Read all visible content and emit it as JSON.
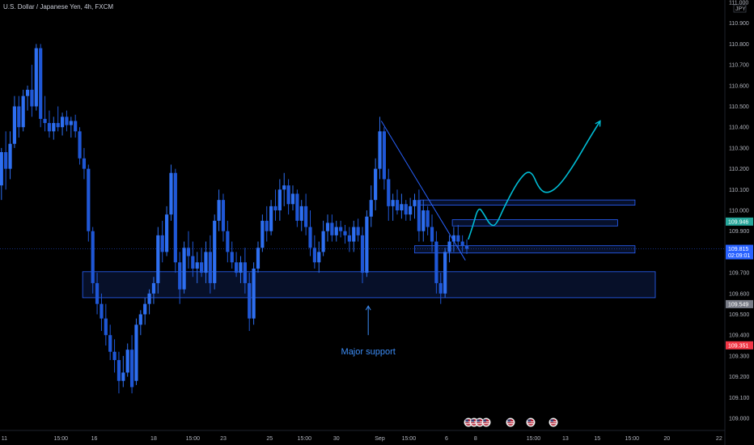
{
  "chart_data": {
    "type": "candlestick",
    "title": "U.S. Dollar / Japanese Yen, 4h, FXCM",
    "currency_tag": "JPY",
    "y_ticks": [
      "111.000",
      "110.900",
      "110.800",
      "110.700",
      "110.600",
      "110.500",
      "110.400",
      "110.300",
      "110.200",
      "110.100",
      "110.000",
      "109.900",
      "109.800",
      "109.700",
      "109.600",
      "109.500",
      "109.400",
      "109.300",
      "109.200",
      "109.100",
      "109.000"
    ],
    "y_tick_values": [
      111.0,
      110.9,
      110.8,
      110.7,
      110.6,
      110.5,
      110.4,
      110.3,
      110.2,
      110.1,
      110.0,
      109.9,
      109.8,
      109.7,
      109.6,
      109.5,
      109.4,
      109.3,
      109.2,
      109.1,
      109.0
    ],
    "ylim": [
      108.98,
      111.02
    ],
    "x_ticks": [
      "11",
      "15:00",
      "16",
      "18",
      "15:00",
      "23",
      "25",
      "15:00",
      "30",
      "Sep",
      "15:00",
      "6",
      "8",
      "15:00",
      "13",
      "15",
      "15:00",
      "20",
      "22"
    ],
    "x_tick_positions": [
      1.5,
      21,
      32.5,
      53,
      66.5,
      77,
      93,
      105,
      116,
      131,
      141,
      154,
      164,
      184,
      195,
      206,
      218,
      230,
      248
    ],
    "xlim": [
      0,
      250
    ],
    "price_badges": [
      {
        "label": "109.946",
        "value": 109.946,
        "color": "#26a69a"
      },
      {
        "label": "109.815",
        "value": 109.815,
        "sublabel": "02:09:01",
        "color": "#2962ff"
      },
      {
        "label": "109.549",
        "value": 109.549,
        "color": "#787b86"
      },
      {
        "label": "109.351",
        "value": 109.351,
        "color": "#f23645"
      }
    ],
    "current_price": 109.815,
    "zones": [
      {
        "name": "major-support-zone",
        "x0": 28.5,
        "x1": 226,
        "y0": 109.58,
        "y1": 109.705
      },
      {
        "name": "zone-110-04",
        "x0": 145,
        "x1": 219,
        "y0": 110.025,
        "y1": 110.05
      },
      {
        "name": "zone-109-94",
        "x0": 156,
        "x1": 213,
        "y0": 109.925,
        "y1": 109.955
      },
      {
        "name": "zone-109-81",
        "x0": 143,
        "x1": 219,
        "y0": 109.795,
        "y1": 109.83
      }
    ],
    "annotation": {
      "text": "Major support",
      "x": 127,
      "arrow_from": 109.4,
      "arrow_to": 109.54
    },
    "trendline": [
      {
        "x": 131.5,
        "y": 110.43
      },
      {
        "x": 160.5,
        "y": 109.76
      }
    ],
    "projection": [
      {
        "x": 161.5,
        "y": 109.86
      },
      {
        "x": 163,
        "y": 109.92
      },
      {
        "x": 165,
        "y": 110.02
      },
      {
        "x": 167,
        "y": 109.98
      },
      {
        "x": 169,
        "y": 109.93
      },
      {
        "x": 171,
        "y": 109.925
      },
      {
        "x": 174,
        "y": 110.02
      },
      {
        "x": 179,
        "y": 110.15
      },
      {
        "x": 183,
        "y": 110.2
      },
      {
        "x": 186,
        "y": 110.1
      },
      {
        "x": 189,
        "y": 110.08
      },
      {
        "x": 193,
        "y": 110.12
      },
      {
        "x": 198,
        "y": 110.22
      },
      {
        "x": 203,
        "y": 110.34
      },
      {
        "x": 207,
        "y": 110.43
      }
    ],
    "candles": [
      {
        "x": 0.5,
        "o": 110.12,
        "h": 110.3,
        "l": 110.05,
        "c": 110.28
      },
      {
        "x": 2,
        "o": 110.28,
        "h": 110.38,
        "l": 110.1,
        "c": 110.2
      },
      {
        "x": 3.5,
        "o": 110.2,
        "h": 110.38,
        "l": 110.15,
        "c": 110.32
      },
      {
        "x": 5,
        "o": 110.32,
        "h": 110.55,
        "l": 110.3,
        "c": 110.5
      },
      {
        "x": 6.5,
        "o": 110.5,
        "h": 110.55,
        "l": 110.35,
        "c": 110.4
      },
      {
        "x": 8,
        "o": 110.4,
        "h": 110.58,
        "l": 110.38,
        "c": 110.55
      },
      {
        "x": 9.5,
        "o": 110.55,
        "h": 110.6,
        "l": 110.48,
        "c": 110.58
      },
      {
        "x": 11,
        "o": 110.58,
        "h": 110.7,
        "l": 110.45,
        "c": 110.5
      },
      {
        "x": 12.5,
        "o": 110.5,
        "h": 110.8,
        "l": 110.48,
        "c": 110.78
      },
      {
        "x": 14,
        "o": 110.78,
        "h": 110.8,
        "l": 110.4,
        "c": 110.44
      },
      {
        "x": 15.5,
        "o": 110.44,
        "h": 110.55,
        "l": 110.38,
        "c": 110.42
      },
      {
        "x": 17,
        "o": 110.42,
        "h": 110.48,
        "l": 110.35,
        "c": 110.38
      },
      {
        "x": 18.5,
        "o": 110.38,
        "h": 110.45,
        "l": 110.34,
        "c": 110.42
      },
      {
        "x": 20,
        "o": 110.42,
        "h": 110.5,
        "l": 110.38,
        "c": 110.4
      },
      {
        "x": 21.5,
        "o": 110.4,
        "h": 110.47,
        "l": 110.36,
        "c": 110.45
      },
      {
        "x": 23,
        "o": 110.45,
        "h": 110.48,
        "l": 110.38,
        "c": 110.41
      },
      {
        "x": 24.5,
        "o": 110.41,
        "h": 110.45,
        "l": 110.35,
        "c": 110.43
      },
      {
        "x": 26,
        "o": 110.43,
        "h": 110.46,
        "l": 110.35,
        "c": 110.38
      },
      {
        "x": 27.5,
        "o": 110.38,
        "h": 110.4,
        "l": 110.22,
        "c": 110.25
      },
      {
        "x": 29,
        "o": 110.25,
        "h": 110.3,
        "l": 110.15,
        "c": 110.2
      },
      {
        "x": 30.5,
        "o": 110.2,
        "h": 110.22,
        "l": 109.85,
        "c": 109.9
      },
      {
        "x": 32,
        "o": 109.9,
        "h": 109.92,
        "l": 109.6,
        "c": 109.65
      },
      {
        "x": 33.5,
        "o": 109.65,
        "h": 109.7,
        "l": 109.5,
        "c": 109.55
      },
      {
        "x": 35,
        "o": 109.55,
        "h": 109.6,
        "l": 109.42,
        "c": 109.48
      },
      {
        "x": 36.5,
        "o": 109.48,
        "h": 109.55,
        "l": 109.35,
        "c": 109.4
      },
      {
        "x": 38,
        "o": 109.4,
        "h": 109.45,
        "l": 109.28,
        "c": 109.32
      },
      {
        "x": 39.5,
        "o": 109.32,
        "h": 109.38,
        "l": 109.22,
        "c": 109.28
      },
      {
        "x": 41,
        "o": 109.28,
        "h": 109.32,
        "l": 109.12,
        "c": 109.18
      },
      {
        "x": 42.5,
        "o": 109.18,
        "h": 109.3,
        "l": 109.15,
        "c": 109.22
      },
      {
        "x": 44,
        "o": 109.22,
        "h": 109.36,
        "l": 109.2,
        "c": 109.33
      },
      {
        "x": 45.5,
        "o": 109.33,
        "h": 109.4,
        "l": 109.12,
        "c": 109.15
      },
      {
        "x": 47,
        "o": 109.18,
        "h": 109.48,
        "l": 109.16,
        "c": 109.45
      },
      {
        "x": 48.5,
        "o": 109.45,
        "h": 109.52,
        "l": 109.4,
        "c": 109.5
      },
      {
        "x": 50,
        "o": 109.5,
        "h": 109.58,
        "l": 109.45,
        "c": 109.55
      },
      {
        "x": 51.5,
        "o": 109.55,
        "h": 109.62,
        "l": 109.5,
        "c": 109.6
      },
      {
        "x": 53,
        "o": 109.6,
        "h": 109.68,
        "l": 109.55,
        "c": 109.65
      },
      {
        "x": 54.5,
        "o": 109.65,
        "h": 109.92,
        "l": 109.6,
        "c": 109.88
      },
      {
        "x": 56,
        "o": 109.88,
        "h": 109.95,
        "l": 109.75,
        "c": 109.8
      },
      {
        "x": 57.5,
        "o": 109.8,
        "h": 110.02,
        "l": 109.78,
        "c": 109.98
      },
      {
        "x": 59,
        "o": 109.98,
        "h": 110.22,
        "l": 109.95,
        "c": 110.18
      },
      {
        "x": 60.5,
        "o": 110.18,
        "h": 110.2,
        "l": 109.7,
        "c": 109.75
      },
      {
        "x": 62,
        "o": 109.75,
        "h": 109.8,
        "l": 109.55,
        "c": 109.62
      },
      {
        "x": 63.5,
        "o": 109.62,
        "h": 109.85,
        "l": 109.6,
        "c": 109.82
      },
      {
        "x": 65,
        "o": 109.82,
        "h": 109.9,
        "l": 109.72,
        "c": 109.78
      },
      {
        "x": 66.5,
        "o": 109.78,
        "h": 109.85,
        "l": 109.68,
        "c": 109.72
      },
      {
        "x": 68,
        "o": 109.72,
        "h": 109.8,
        "l": 109.65,
        "c": 109.75
      },
      {
        "x": 69.5,
        "o": 109.75,
        "h": 109.82,
        "l": 109.68,
        "c": 109.7
      },
      {
        "x": 71,
        "o": 109.7,
        "h": 109.85,
        "l": 109.65,
        "c": 109.8
      },
      {
        "x": 72.5,
        "o": 109.8,
        "h": 109.88,
        "l": 109.6,
        "c": 109.65
      },
      {
        "x": 74,
        "o": 109.65,
        "h": 109.98,
        "l": 109.62,
        "c": 109.95
      },
      {
        "x": 75.5,
        "o": 109.95,
        "h": 110.1,
        "l": 109.9,
        "c": 110.05
      },
      {
        "x": 77,
        "o": 110.05,
        "h": 110.08,
        "l": 109.85,
        "c": 109.9
      },
      {
        "x": 78.5,
        "o": 109.9,
        "h": 109.95,
        "l": 109.75,
        "c": 109.8
      },
      {
        "x": 80,
        "o": 109.8,
        "h": 109.85,
        "l": 109.72,
        "c": 109.75
      },
      {
        "x": 81.5,
        "o": 109.75,
        "h": 109.8,
        "l": 109.68,
        "c": 109.7
      },
      {
        "x": 83,
        "o": 109.7,
        "h": 109.78,
        "l": 109.65,
        "c": 109.75
      },
      {
        "x": 84.5,
        "o": 109.75,
        "h": 109.82,
        "l": 109.6,
        "c": 109.65
      },
      {
        "x": 86,
        "o": 109.65,
        "h": 109.7,
        "l": 109.42,
        "c": 109.48
      },
      {
        "x": 87.5,
        "o": 109.48,
        "h": 109.75,
        "l": 109.45,
        "c": 109.72
      },
      {
        "x": 89,
        "o": 109.72,
        "h": 109.85,
        "l": 109.7,
        "c": 109.82
      },
      {
        "x": 90.5,
        "o": 109.82,
        "h": 109.98,
        "l": 109.8,
        "c": 109.95
      },
      {
        "x": 92,
        "o": 109.95,
        "h": 110.02,
        "l": 109.85,
        "c": 109.9
      },
      {
        "x": 93.5,
        "o": 109.9,
        "h": 110.05,
        "l": 109.88,
        "c": 110.02
      },
      {
        "x": 95,
        "o": 110.02,
        "h": 110.1,
        "l": 109.95,
        "c": 110.0
      },
      {
        "x": 96.5,
        "o": 110.0,
        "h": 110.15,
        "l": 109.95,
        "c": 110.1
      },
      {
        "x": 98,
        "o": 110.1,
        "h": 110.18,
        "l": 110.02,
        "c": 110.12
      },
      {
        "x": 99.5,
        "o": 110.12,
        "h": 110.15,
        "l": 109.98,
        "c": 110.03
      },
      {
        "x": 101,
        "o": 110.03,
        "h": 110.12,
        "l": 110.0,
        "c": 110.08
      },
      {
        "x": 102.5,
        "o": 110.08,
        "h": 110.1,
        "l": 109.92,
        "c": 109.95
      },
      {
        "x": 104,
        "o": 109.95,
        "h": 110.05,
        "l": 109.9,
        "c": 110.02
      },
      {
        "x": 105.5,
        "o": 110.02,
        "h": 110.08,
        "l": 109.88,
        "c": 109.92
      },
      {
        "x": 107,
        "o": 109.92,
        "h": 110.0,
        "l": 109.78,
        "c": 109.82
      },
      {
        "x": 108.5,
        "o": 109.82,
        "h": 109.88,
        "l": 109.72,
        "c": 109.75
      },
      {
        "x": 110,
        "o": 109.75,
        "h": 109.85,
        "l": 109.7,
        "c": 109.8
      },
      {
        "x": 111.5,
        "o": 109.8,
        "h": 109.95,
        "l": 109.78,
        "c": 109.9
      },
      {
        "x": 113,
        "o": 109.9,
        "h": 109.98,
        "l": 109.85,
        "c": 109.94
      },
      {
        "x": 114.5,
        "o": 109.94,
        "h": 109.98,
        "l": 109.85,
        "c": 109.88
      },
      {
        "x": 116,
        "o": 109.88,
        "h": 109.95,
        "l": 109.85,
        "c": 109.92
      },
      {
        "x": 117.5,
        "o": 109.92,
        "h": 109.95,
        "l": 109.87,
        "c": 109.9
      },
      {
        "x": 119,
        "o": 109.9,
        "h": 109.93,
        "l": 109.84,
        "c": 109.88
      },
      {
        "x": 120.5,
        "o": 109.88,
        "h": 109.92,
        "l": 109.8,
        "c": 109.85
      },
      {
        "x": 122,
        "o": 109.85,
        "h": 109.95,
        "l": 109.8,
        "c": 109.92
      },
      {
        "x": 123.5,
        "o": 109.92,
        "h": 109.96,
        "l": 109.85,
        "c": 109.88
      },
      {
        "x": 125,
        "o": 109.88,
        "h": 109.92,
        "l": 109.65,
        "c": 109.7
      },
      {
        "x": 126.5,
        "o": 109.7,
        "h": 110.0,
        "l": 109.68,
        "c": 109.97
      },
      {
        "x": 128,
        "o": 109.97,
        "h": 110.12,
        "l": 109.92,
        "c": 110.05
      },
      {
        "x": 129.5,
        "o": 110.05,
        "h": 110.25,
        "l": 110.0,
        "c": 110.2
      },
      {
        "x": 131,
        "o": 110.2,
        "h": 110.45,
        "l": 110.15,
        "c": 110.38
      },
      {
        "x": 132.5,
        "o": 110.38,
        "h": 110.4,
        "l": 110.1,
        "c": 110.15
      },
      {
        "x": 134,
        "o": 110.15,
        "h": 110.2,
        "l": 109.95,
        "c": 110.02
      },
      {
        "x": 135.5,
        "o": 110.02,
        "h": 110.08,
        "l": 109.95,
        "c": 110.05
      },
      {
        "x": 137,
        "o": 110.05,
        "h": 110.1,
        "l": 109.98,
        "c": 110.0
      },
      {
        "x": 138.5,
        "o": 110.0,
        "h": 110.08,
        "l": 109.96,
        "c": 110.03
      },
      {
        "x": 140,
        "o": 110.03,
        "h": 110.05,
        "l": 109.95,
        "c": 109.98
      },
      {
        "x": 141.5,
        "o": 109.98,
        "h": 110.06,
        "l": 109.95,
        "c": 110.02
      },
      {
        "x": 143,
        "o": 110.02,
        "h": 110.08,
        "l": 109.96,
        "c": 110.05
      },
      {
        "x": 144.5,
        "o": 110.05,
        "h": 110.1,
        "l": 109.85,
        "c": 109.9
      },
      {
        "x": 146,
        "o": 109.9,
        "h": 110.05,
        "l": 109.85,
        "c": 110.0
      },
      {
        "x": 147.5,
        "o": 110.0,
        "h": 110.02,
        "l": 109.88,
        "c": 109.92
      },
      {
        "x": 149,
        "o": 109.92,
        "h": 109.98,
        "l": 109.8,
        "c": 109.85
      },
      {
        "x": 150.5,
        "o": 109.85,
        "h": 109.9,
        "l": 109.6,
        "c": 109.65
      },
      {
        "x": 152,
        "o": 109.65,
        "h": 109.7,
        "l": 109.55,
        "c": 109.6
      },
      {
        "x": 153.5,
        "o": 109.6,
        "h": 109.82,
        "l": 109.58,
        "c": 109.8
      },
      {
        "x": 155,
        "o": 109.8,
        "h": 109.88,
        "l": 109.75,
        "c": 109.85
      },
      {
        "x": 156.5,
        "o": 109.85,
        "h": 109.92,
        "l": 109.8,
        "c": 109.88
      },
      {
        "x": 158,
        "o": 109.88,
        "h": 109.93,
        "l": 109.82,
        "c": 109.85
      },
      {
        "x": 159.5,
        "o": 109.85,
        "h": 109.88,
        "l": 109.8,
        "c": 109.83
      },
      {
        "x": 161,
        "o": 109.83,
        "h": 109.86,
        "l": 109.79,
        "c": 109.815
      }
    ]
  },
  "event_flags": [
    "us-flag",
    "us-flag",
    "us-flag",
    "us-flag",
    "us-flag",
    "us-flag",
    "us-flag"
  ]
}
